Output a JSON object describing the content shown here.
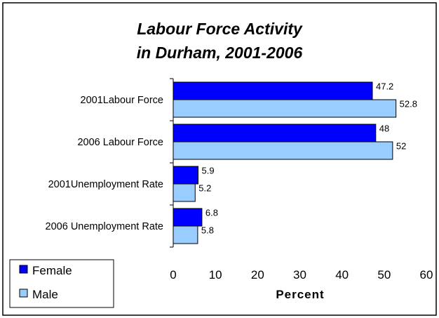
{
  "chart_data": {
    "type": "bar",
    "orientation": "horizontal",
    "title": [
      "Labour Force Activity",
      "in Durham, 2001-2006"
    ],
    "categories": [
      "2001Labour Force",
      "2006 Labour Force",
      "2001Unemployment Rate",
      "2006 Unemployment Rate"
    ],
    "series": [
      {
        "name": "Female",
        "values": [
          47.2,
          48,
          5.9,
          6.8
        ],
        "color": "#0000FF"
      },
      {
        "name": "Male",
        "values": [
          52.8,
          52,
          5.2,
          5.8
        ],
        "color": "#99CCFF"
      }
    ],
    "value_labels": [
      [
        "47.2",
        "48",
        "5.9",
        "6.8"
      ],
      [
        "52.8",
        "52",
        "5.2",
        "5.8"
      ]
    ],
    "xlabel": "Percent",
    "xlim": [
      0,
      60
    ],
    "xticks": [
      0,
      10,
      20,
      30,
      40,
      50,
      60
    ],
    "xtick_labels": [
      "0",
      "10",
      "20",
      "30",
      "40",
      "50",
      "60"
    ],
    "grid": false,
    "legend_position": "bottom-left"
  }
}
